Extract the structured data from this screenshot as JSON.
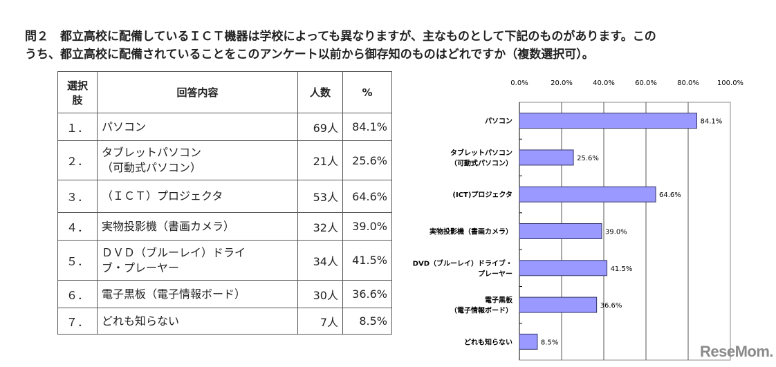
{
  "title_lines": [
    "問２　都立高校に配備しているＩＣＴ機器は学校によっても異なりますが、主なものとして下記のものがあります。この",
    "うち、都立高校に配備されていることをこのアンケート以前から御存知のものはどれですか（複数選択可）。"
  ],
  "table": {
    "headers": [
      "選択\n肢",
      "回答内容",
      "人数",
      "%"
    ],
    "rows": [
      {
        "no": "１．",
        "label": "パソコン",
        "count": "69人",
        "pct": "84.1%"
      },
      {
        "no": "２．",
        "label": "タブレットパソコン\n（可動式パソコン）",
        "count": "21人",
        "pct": "25.6%"
      },
      {
        "no": "３．",
        "label": "（ＩＣＴ）プロジェクタ",
        "count": "53人",
        "pct": "64.6%"
      },
      {
        "no": "４．",
        "label": "実物投影機（書画カメラ）",
        "count": "32人",
        "pct": "39.0%"
      },
      {
        "no": "５．",
        "label": "ＤＶＤ（ブルーレイ）ドライ\nブ・プレーヤー",
        "count": "34人",
        "pct": "41.5%"
      },
      {
        "no": "６．",
        "label": "電子黒板（電子情報ボード）",
        "count": "30人",
        "pct": "36.6%"
      },
      {
        "no": "７．",
        "label": "どれも知らない",
        "count": "7人",
        "pct": "8.5%"
      }
    ]
  },
  "chart_data": {
    "type": "bar",
    "orientation": "horizontal",
    "categories": [
      "パソコン",
      "タブレットパソコン\n（可動式パソコン）",
      "(ICT)プロジェクタ",
      "実物投影機（書画カメラ）",
      "DVD（ブルーレイ）ドライブ・\nプレーヤー",
      "電子黒板\n（電子情報ボード）",
      "どれも知らない"
    ],
    "values": [
      84.1,
      25.6,
      64.6,
      39.0,
      41.5,
      36.6,
      8.5
    ],
    "data_labels": [
      "84.1%",
      "25.6%",
      "64.6%",
      "39.0%",
      "41.5%",
      "36.6%",
      "8.5%"
    ],
    "xlim": [
      0,
      100
    ],
    "x_ticks": [
      "0.0%",
      "20.0%",
      "40.0%",
      "60.0%",
      "80.0%",
      "100.0%"
    ],
    "axis_position": "top",
    "grid": true,
    "bar_color": "#9999ff",
    "bar_border": "#333366"
  },
  "logo": "ReseMom"
}
